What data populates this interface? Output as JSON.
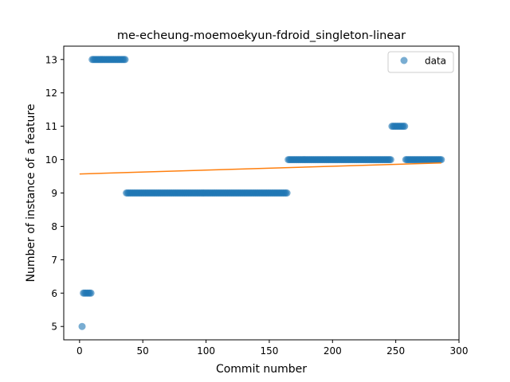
{
  "chart_data": {
    "type": "scatter",
    "title": "me-echeung-moemoekyun-fdroid_singleton-linear",
    "xlabel": "Commit number",
    "ylabel": "Number of instance of a feature",
    "xlim": [
      -12.5,
      300
    ],
    "ylim": [
      4.6,
      13.4
    ],
    "xticks": [
      0,
      50,
      100,
      150,
      200,
      250,
      300
    ],
    "yticks": [
      5,
      6,
      7,
      8,
      9,
      10,
      11,
      12,
      13
    ],
    "grid": false,
    "legend": {
      "position": "top-right",
      "entries": [
        "data"
      ]
    },
    "colors": {
      "data": "#1f77b4",
      "fit": "#ff7f0e"
    },
    "series": [
      {
        "name": "data",
        "kind": "scatter",
        "segments": [
          {
            "x_start": 2,
            "x_end": 2,
            "y": 5
          },
          {
            "x_start": 3,
            "x_end": 9,
            "y": 6
          },
          {
            "x_start": 10,
            "x_end": 36,
            "y": 13
          },
          {
            "x_start": 37,
            "x_end": 164,
            "y": 9
          },
          {
            "x_start": 165,
            "x_end": 246,
            "y": 10
          },
          {
            "x_start": 247,
            "x_end": 257,
            "y": 11
          },
          {
            "x_start": 258,
            "x_end": 286,
            "y": 10
          }
        ]
      },
      {
        "name": "",
        "kind": "line",
        "x": [
          0,
          286
        ],
        "y": [
          9.57,
          9.9
        ]
      }
    ]
  }
}
